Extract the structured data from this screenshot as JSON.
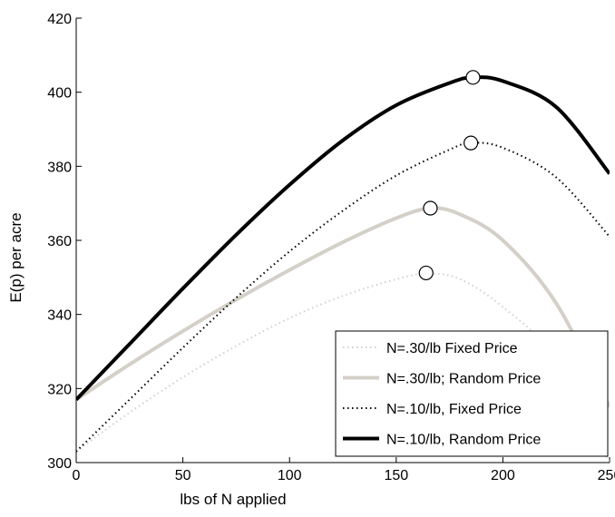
{
  "chart_data": {
    "type": "line",
    "xlabel": "lbs of N applied",
    "ylabel": "E(p) per acre",
    "xlim": [
      0,
      250
    ],
    "ylim": [
      300,
      420
    ],
    "xticks": [
      0,
      50,
      100,
      150,
      200,
      250
    ],
    "yticks": [
      300,
      320,
      340,
      360,
      380,
      400,
      420
    ],
    "grid": false,
    "legend_position": "bottom-right",
    "series": [
      {
        "name": "N=.30/lb Fixed Price",
        "color": "#d4d0c8",
        "style": "dotted-thin",
        "x": [
          0,
          25,
          50,
          75,
          100,
          125,
          150,
          165,
          180,
          200,
          225,
          250
        ],
        "y": [
          303,
          313.5,
          323,
          331.5,
          339,
          345,
          349.5,
          351,
          349.5,
          342,
          328,
          300
        ],
        "optimum": {
          "x": 164,
          "y": 351.2
        }
      },
      {
        "name": "N=.30/lb; Random Price",
        "color": "#d4d0c8",
        "style": "solid-thick",
        "x": [
          0,
          25,
          50,
          75,
          100,
          125,
          150,
          166,
          180,
          200,
          225,
          250
        ],
        "y": [
          317,
          326.5,
          335.5,
          344,
          352,
          359.5,
          366,
          368.7,
          367,
          360,
          343,
          315
        ],
        "optimum": {
          "x": 166,
          "y": 368.7
        }
      },
      {
        "name": "N=.10/lb, Fixed Price",
        "color": "#000000",
        "style": "dotted-thin",
        "x": [
          0,
          25,
          50,
          75,
          100,
          125,
          150,
          175,
          185,
          200,
          225,
          250
        ],
        "y": [
          303,
          317,
          331,
          344.5,
          357,
          368,
          377.5,
          384.5,
          386.3,
          385,
          377,
          361
        ],
        "optimum": {
          "x": 185,
          "y": 386.3
        }
      },
      {
        "name": "N=.10/lb, Random Price",
        "color": "#000000",
        "style": "solid-thick",
        "x": [
          0,
          25,
          50,
          75,
          100,
          125,
          150,
          175,
          186,
          200,
          225,
          250
        ],
        "y": [
          317,
          332,
          347,
          361.5,
          375,
          387,
          396.5,
          402.5,
          404,
          403,
          396,
          378
        ],
        "optimum": {
          "x": 186,
          "y": 404
        }
      }
    ]
  }
}
